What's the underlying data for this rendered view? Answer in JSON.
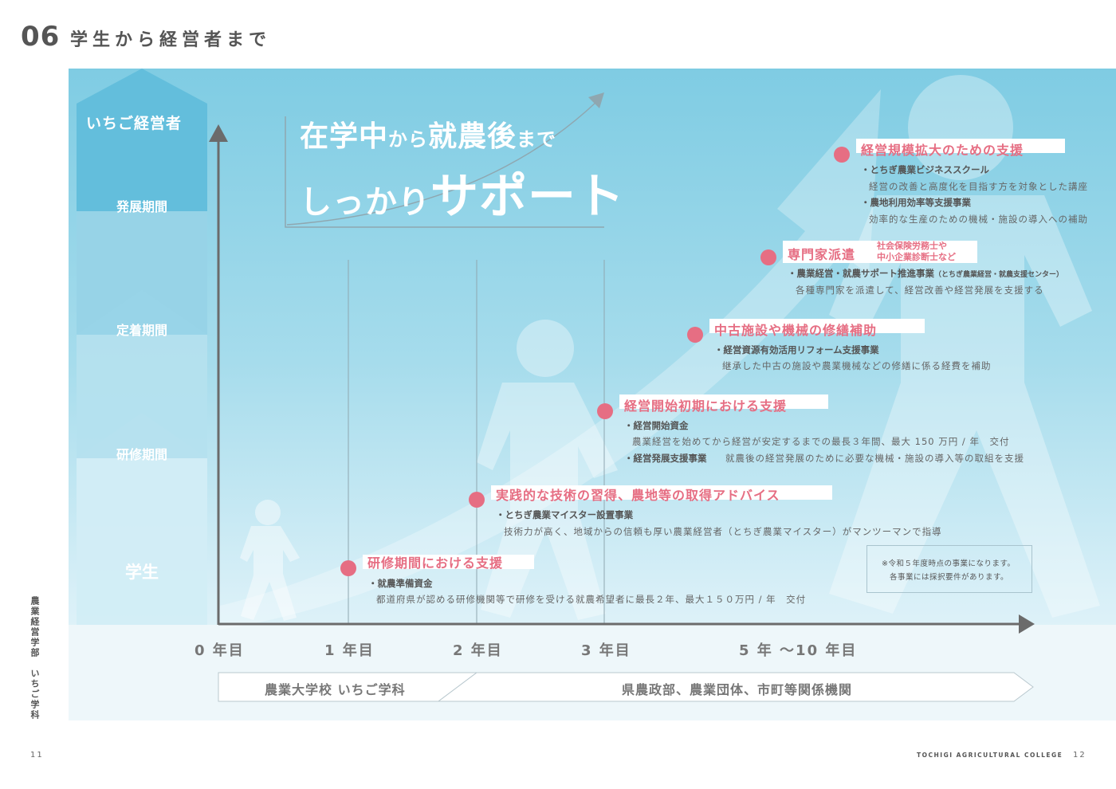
{
  "header": {
    "section_number": "06",
    "section_title": "学生から経営者まで"
  },
  "side_label": "農業経営学部　いちご学科",
  "footer": {
    "page_left": "11",
    "page_right": "12",
    "college": "TOCHIGI AGRICULTURAL COLLEGE"
  },
  "headline": {
    "line1_a": "在学中",
    "line1_b": "から",
    "line1_c": "就農後",
    "line1_d": "まで",
    "line2_a": "しっかり",
    "line2_b": "サポート"
  },
  "stages": [
    {
      "label": "いちご経営者"
    },
    {
      "label": "発展期間"
    },
    {
      "label": "定着期間"
    },
    {
      "label": "研修期間"
    },
    {
      "label": "学生"
    }
  ],
  "x_axis": [
    "0 年目",
    "1 年目",
    "2 年目",
    "3 年目",
    "5 年 〜10 年目"
  ],
  "bars": {
    "school": "農業大学校 いちご学科",
    "agencies": "県農政部、農業団体、市町等関係機関"
  },
  "milestones": [
    {
      "title": "研修期間における支援",
      "items": [
        {
          "bullet": "・就農準備資金",
          "desc": "都道府県が認める研修機関等で研修を受ける就農希望者に最長２年、最大１５０万円 / 年　交付"
        }
      ]
    },
    {
      "title": "実践的な技術の習得、農地等の取得アドバイス",
      "items": [
        {
          "bullet": "・とちぎ農業マイスター設置事業",
          "desc": "技術力が高く、地域からの信頼も厚い農業経営者（とちぎ農業マイスター）がマンツーマンで指導"
        }
      ]
    },
    {
      "title": "経営開始初期における支援",
      "items": [
        {
          "bullet": "・経営開始資金",
          "desc": "農業経営を始めてから経営が安定するまでの最長３年間、最大 150 万円 / 年　交付"
        },
        {
          "bullet": "・経営発展支援事業",
          "desc": "就農後の経営発展のために必要な機械・施設の導入等の取組を支援"
        }
      ]
    },
    {
      "title": "中古施設や機械の修繕補助",
      "items": [
        {
          "bullet": "・経営資源有効活用リフォーム支援事業",
          "desc": "継承した中古の施設や農業機械などの修繕に係る経費を補助"
        }
      ]
    },
    {
      "title": "専門家派遣",
      "subtitle_1": "社会保険労務士や",
      "subtitle_2": "中小企業診断士など",
      "items": [
        {
          "bullet": "・農業経営・就農サポート推進事業",
          "bullet_small": "（とちぎ農業経営・就農支援センター）",
          "desc": "各種専門家を派遣して、経営改善や経営発展を支援する"
        }
      ]
    },
    {
      "title": "経営規模拡大のための支援",
      "items": [
        {
          "bullet": "・とちぎ農業ビジネススクール",
          "desc": "経営の改善と高度化を目指す方を対象とした講座"
        },
        {
          "bullet": "・農地利用効率等支援事業",
          "desc": "効率的な生産のための機械・施設の導入への補助"
        }
      ]
    }
  ],
  "note": {
    "line1": "※令和５年度時点の事業になります。",
    "line2": "各事業には採択要件があります。"
  },
  "colors": {
    "accent": "#e66e83",
    "panel_top": "#7fcce3",
    "axis": "#6b6b6b"
  },
  "icons": [
    "person-walking-small-icon",
    "person-walking-medium-icon",
    "person-walking-large-icon",
    "growth-arrow-icon"
  ]
}
